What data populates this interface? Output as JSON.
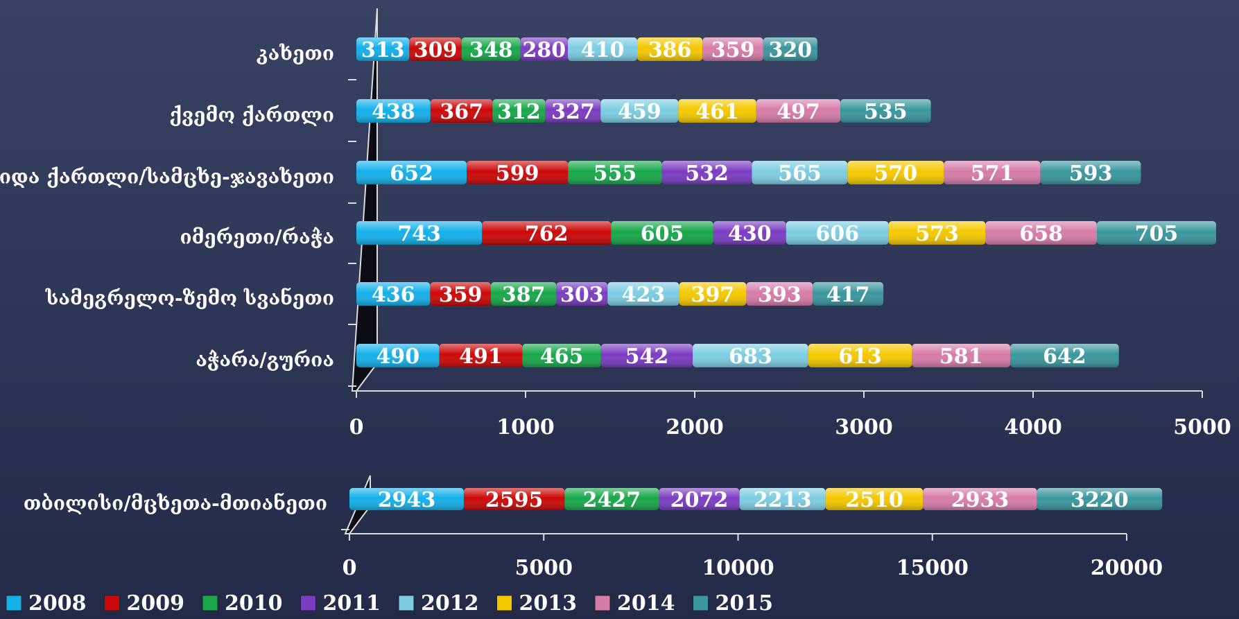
{
  "chart_data": [
    {
      "type": "bar",
      "orientation": "horizontal",
      "stacked": true,
      "categories": [
        "კახეთი",
        "ქვემო ქართლი",
        "შიდა ქართლი/სამცხე-ჯავახეთი",
        "იმერეთი/რაჭა",
        "სამეგრელო-ზემო სვანეთი",
        "აჭარა/გურია"
      ],
      "series": [
        {
          "name": "2008",
          "color": "#14b0ea",
          "values": [
            313,
            438,
            652,
            743,
            436,
            490
          ]
        },
        {
          "name": "2009",
          "color": "#cc0808",
          "values": [
            309,
            367,
            599,
            762,
            359,
            491
          ]
        },
        {
          "name": "2010",
          "color": "#18a84a",
          "values": [
            348,
            312,
            555,
            605,
            387,
            465
          ]
        },
        {
          "name": "2011",
          "color": "#7b3cc2",
          "values": [
            280,
            327,
            532,
            430,
            303,
            542
          ]
        },
        {
          "name": "2012",
          "color": "#7ccde2",
          "values": [
            410,
            459,
            565,
            606,
            423,
            683
          ]
        },
        {
          "name": "2013",
          "color": "#f4c800",
          "values": [
            386,
            461,
            570,
            573,
            397,
            613
          ]
        },
        {
          "name": "2014",
          "color": "#d67ca8",
          "values": [
            359,
            497,
            571,
            658,
            393,
            581
          ]
        },
        {
          "name": "2015",
          "color": "#3a979e",
          "values": [
            320,
            535,
            593,
            705,
            417,
            642
          ]
        }
      ],
      "xlim": [
        0,
        5000
      ],
      "xticks": [
        0,
        1000,
        2000,
        3000,
        4000,
        5000
      ],
      "legend": "bottom-left"
    },
    {
      "type": "bar",
      "orientation": "horizontal",
      "stacked": true,
      "categories": [
        "თბილისი/მცხეთა-მთიანეთი"
      ],
      "series": [
        {
          "color": "#14b0ea",
          "values": [
            2943
          ]
        },
        {
          "color": "#cc0808",
          "values": [
            2595
          ]
        },
        {
          "color": "#18a84a",
          "values": [
            2427
          ]
        },
        {
          "color": "#7b3cc2",
          "values": [
            2072
          ]
        },
        {
          "color": "#7ccde2",
          "values": [
            2213
          ]
        },
        {
          "color": "#f4c800",
          "values": [
            2510
          ]
        },
        {
          "color": "#d67ca8",
          "values": [
            2933
          ]
        },
        {
          "color": "#3a979e",
          "values": [
            3220
          ]
        }
      ],
      "xlim": [
        0,
        20000
      ],
      "xticks": [
        0,
        5000,
        10000,
        15000,
        20000
      ]
    }
  ]
}
